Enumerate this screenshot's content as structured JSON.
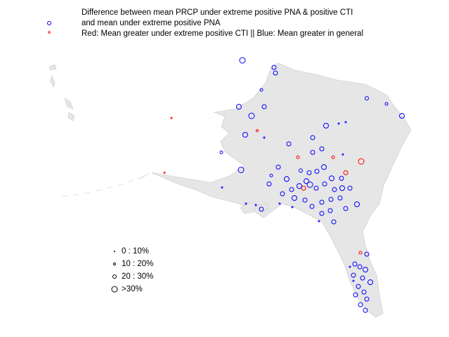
{
  "header": {
    "lines": [
      "Difference between mean PRCP under extreme positive PNA & positive CTI",
      "and mean under extreme positive PNA",
      "Red: Mean greater under extreme positive CTI || Blue: Mean greater in general"
    ]
  },
  "legend": {
    "items": [
      "0 : 10%",
      "10 : 20%",
      "20 : 30%",
      ">30%"
    ]
  }
}
